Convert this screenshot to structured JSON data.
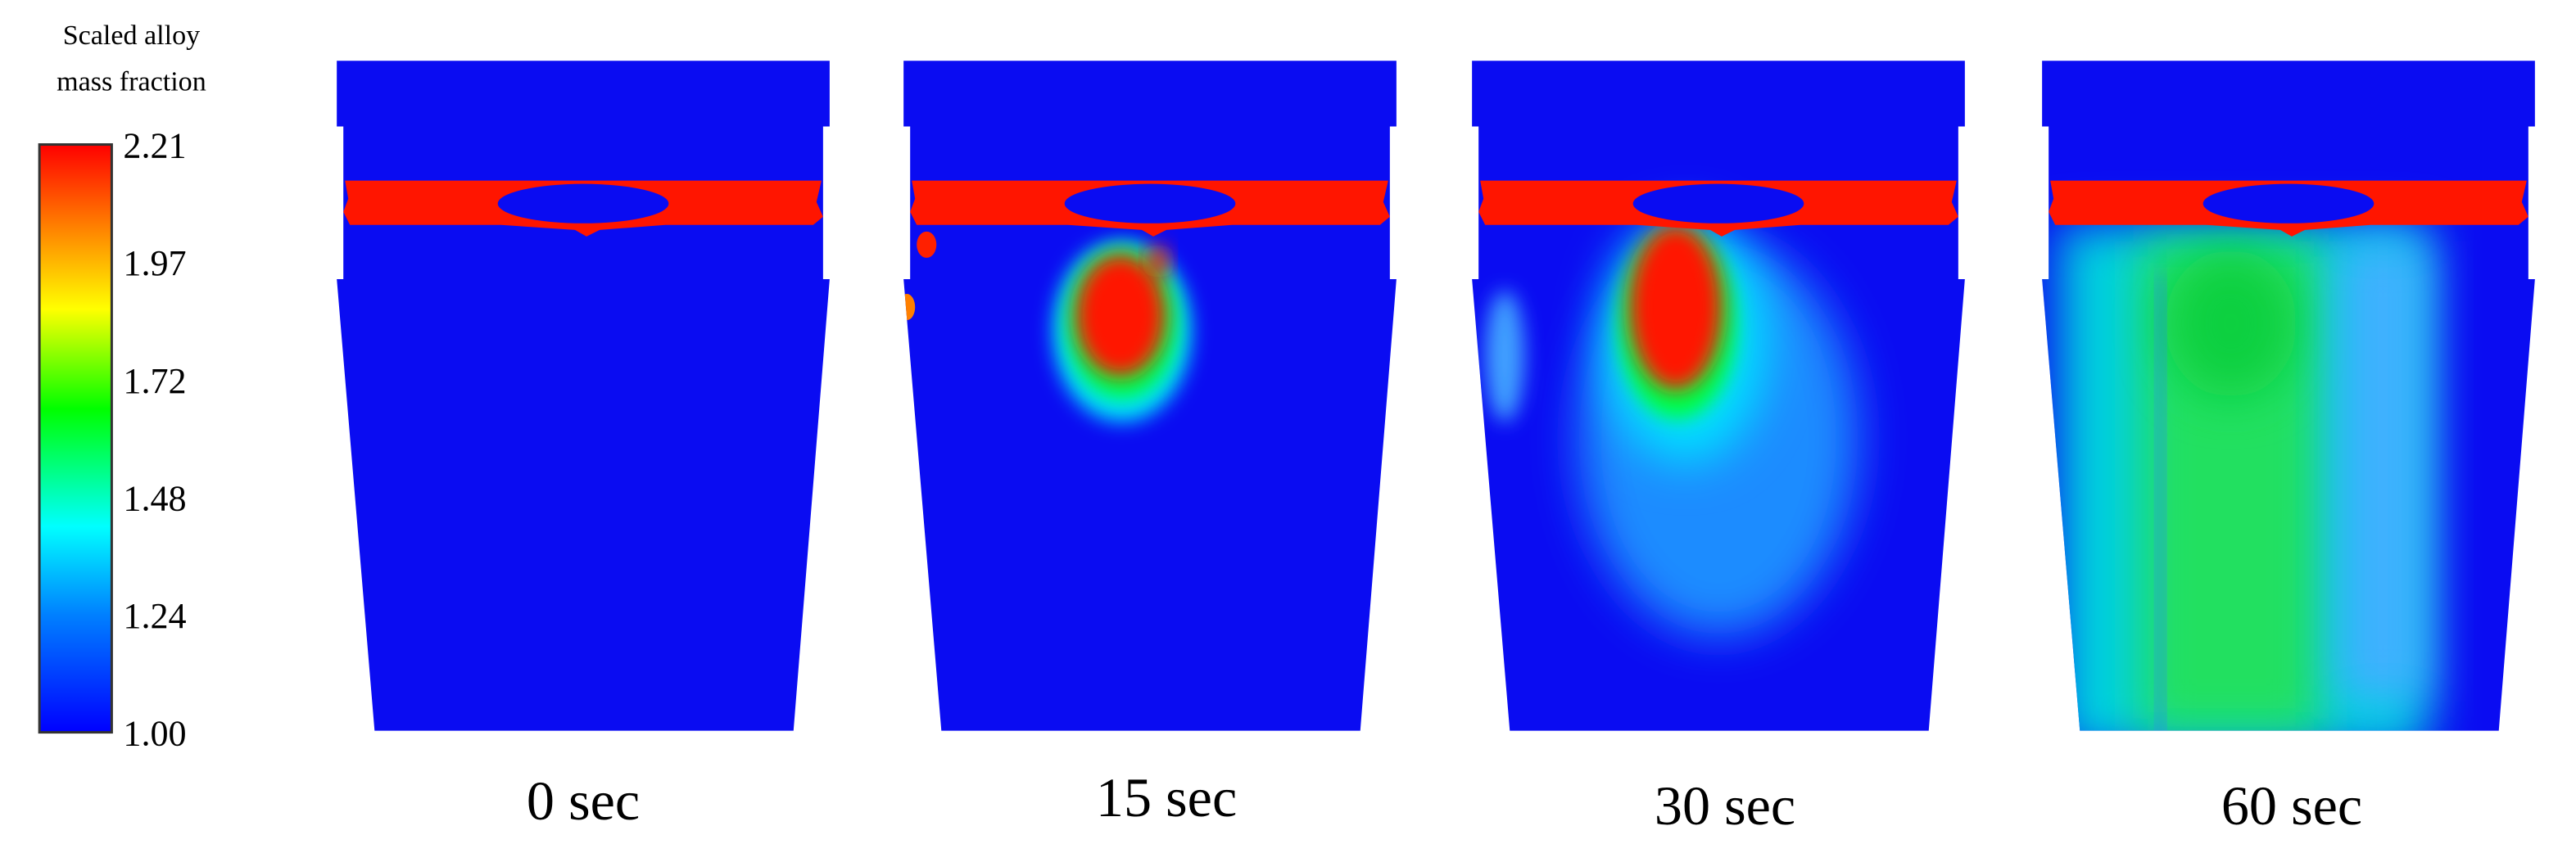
{
  "colorbar": {
    "title": [
      "Scaled alloy",
      "mass fraction"
    ],
    "ticks": [
      "2.21",
      "1.97",
      "1.72",
      "1.48",
      "1.24",
      "1.00"
    ]
  },
  "panels": [
    {
      "label": "0 sec"
    },
    {
      "label": "15 sec"
    },
    {
      "label": "30 sec"
    },
    {
      "label": "60 sec"
    }
  ]
}
